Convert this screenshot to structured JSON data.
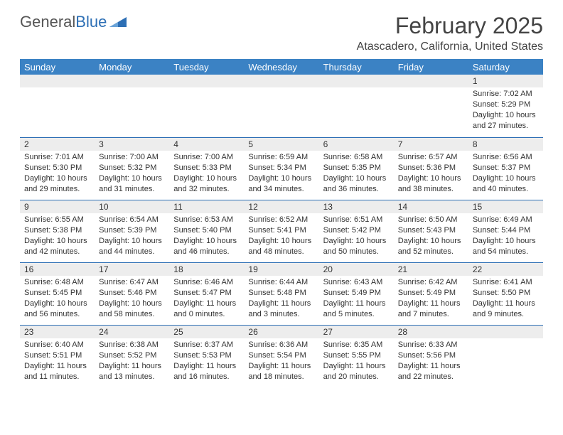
{
  "brand": {
    "part1": "General",
    "part2": "Blue"
  },
  "title": "February 2025",
  "location": "Atascadero, California, United States",
  "colors": {
    "header_bg": "#3b82c4",
    "border": "#2d6fb5",
    "daybar_bg": "#ededed",
    "text": "#333333"
  },
  "weekdays": [
    "Sunday",
    "Monday",
    "Tuesday",
    "Wednesday",
    "Thursday",
    "Friday",
    "Saturday"
  ],
  "weeks": [
    [
      null,
      null,
      null,
      null,
      null,
      null,
      {
        "n": "1",
        "sunrise": "Sunrise: 7:02 AM",
        "sunset": "Sunset: 5:29 PM",
        "daylight": "Daylight: 10 hours and 27 minutes."
      }
    ],
    [
      {
        "n": "2",
        "sunrise": "Sunrise: 7:01 AM",
        "sunset": "Sunset: 5:30 PM",
        "daylight": "Daylight: 10 hours and 29 minutes."
      },
      {
        "n": "3",
        "sunrise": "Sunrise: 7:00 AM",
        "sunset": "Sunset: 5:32 PM",
        "daylight": "Daylight: 10 hours and 31 minutes."
      },
      {
        "n": "4",
        "sunrise": "Sunrise: 7:00 AM",
        "sunset": "Sunset: 5:33 PM",
        "daylight": "Daylight: 10 hours and 32 minutes."
      },
      {
        "n": "5",
        "sunrise": "Sunrise: 6:59 AM",
        "sunset": "Sunset: 5:34 PM",
        "daylight": "Daylight: 10 hours and 34 minutes."
      },
      {
        "n": "6",
        "sunrise": "Sunrise: 6:58 AM",
        "sunset": "Sunset: 5:35 PM",
        "daylight": "Daylight: 10 hours and 36 minutes."
      },
      {
        "n": "7",
        "sunrise": "Sunrise: 6:57 AM",
        "sunset": "Sunset: 5:36 PM",
        "daylight": "Daylight: 10 hours and 38 minutes."
      },
      {
        "n": "8",
        "sunrise": "Sunrise: 6:56 AM",
        "sunset": "Sunset: 5:37 PM",
        "daylight": "Daylight: 10 hours and 40 minutes."
      }
    ],
    [
      {
        "n": "9",
        "sunrise": "Sunrise: 6:55 AM",
        "sunset": "Sunset: 5:38 PM",
        "daylight": "Daylight: 10 hours and 42 minutes."
      },
      {
        "n": "10",
        "sunrise": "Sunrise: 6:54 AM",
        "sunset": "Sunset: 5:39 PM",
        "daylight": "Daylight: 10 hours and 44 minutes."
      },
      {
        "n": "11",
        "sunrise": "Sunrise: 6:53 AM",
        "sunset": "Sunset: 5:40 PM",
        "daylight": "Daylight: 10 hours and 46 minutes."
      },
      {
        "n": "12",
        "sunrise": "Sunrise: 6:52 AM",
        "sunset": "Sunset: 5:41 PM",
        "daylight": "Daylight: 10 hours and 48 minutes."
      },
      {
        "n": "13",
        "sunrise": "Sunrise: 6:51 AM",
        "sunset": "Sunset: 5:42 PM",
        "daylight": "Daylight: 10 hours and 50 minutes."
      },
      {
        "n": "14",
        "sunrise": "Sunrise: 6:50 AM",
        "sunset": "Sunset: 5:43 PM",
        "daylight": "Daylight: 10 hours and 52 minutes."
      },
      {
        "n": "15",
        "sunrise": "Sunrise: 6:49 AM",
        "sunset": "Sunset: 5:44 PM",
        "daylight": "Daylight: 10 hours and 54 minutes."
      }
    ],
    [
      {
        "n": "16",
        "sunrise": "Sunrise: 6:48 AM",
        "sunset": "Sunset: 5:45 PM",
        "daylight": "Daylight: 10 hours and 56 minutes."
      },
      {
        "n": "17",
        "sunrise": "Sunrise: 6:47 AM",
        "sunset": "Sunset: 5:46 PM",
        "daylight": "Daylight: 10 hours and 58 minutes."
      },
      {
        "n": "18",
        "sunrise": "Sunrise: 6:46 AM",
        "sunset": "Sunset: 5:47 PM",
        "daylight": "Daylight: 11 hours and 0 minutes."
      },
      {
        "n": "19",
        "sunrise": "Sunrise: 6:44 AM",
        "sunset": "Sunset: 5:48 PM",
        "daylight": "Daylight: 11 hours and 3 minutes."
      },
      {
        "n": "20",
        "sunrise": "Sunrise: 6:43 AM",
        "sunset": "Sunset: 5:49 PM",
        "daylight": "Daylight: 11 hours and 5 minutes."
      },
      {
        "n": "21",
        "sunrise": "Sunrise: 6:42 AM",
        "sunset": "Sunset: 5:49 PM",
        "daylight": "Daylight: 11 hours and 7 minutes."
      },
      {
        "n": "22",
        "sunrise": "Sunrise: 6:41 AM",
        "sunset": "Sunset: 5:50 PM",
        "daylight": "Daylight: 11 hours and 9 minutes."
      }
    ],
    [
      {
        "n": "23",
        "sunrise": "Sunrise: 6:40 AM",
        "sunset": "Sunset: 5:51 PM",
        "daylight": "Daylight: 11 hours and 11 minutes."
      },
      {
        "n": "24",
        "sunrise": "Sunrise: 6:38 AM",
        "sunset": "Sunset: 5:52 PM",
        "daylight": "Daylight: 11 hours and 13 minutes."
      },
      {
        "n": "25",
        "sunrise": "Sunrise: 6:37 AM",
        "sunset": "Sunset: 5:53 PM",
        "daylight": "Daylight: 11 hours and 16 minutes."
      },
      {
        "n": "26",
        "sunrise": "Sunrise: 6:36 AM",
        "sunset": "Sunset: 5:54 PM",
        "daylight": "Daylight: 11 hours and 18 minutes."
      },
      {
        "n": "27",
        "sunrise": "Sunrise: 6:35 AM",
        "sunset": "Sunset: 5:55 PM",
        "daylight": "Daylight: 11 hours and 20 minutes."
      },
      {
        "n": "28",
        "sunrise": "Sunrise: 6:33 AM",
        "sunset": "Sunset: 5:56 PM",
        "daylight": "Daylight: 11 hours and 22 minutes."
      },
      null
    ]
  ]
}
